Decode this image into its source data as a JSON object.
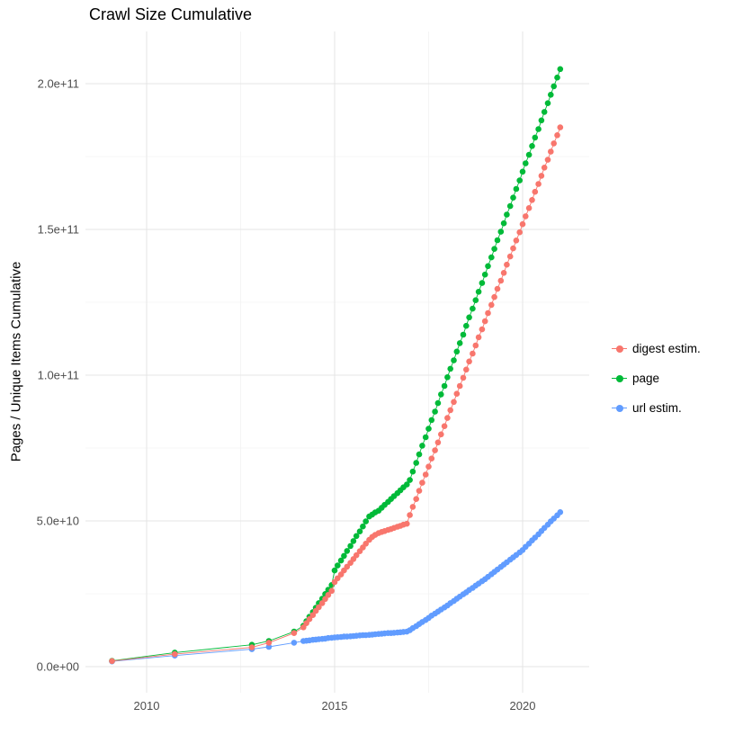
{
  "chart_data": {
    "type": "scatter",
    "title": "Crawl Size Cumulative",
    "xlabel": "",
    "ylabel": "Pages / Unique Items Cumulative",
    "grid": true,
    "legend_position": "right",
    "y_unit": 1000000000.0,
    "xlim": [
      2008.4,
      2021.8
    ],
    "ylim": [
      -9000000000.0,
      218000000000.0
    ],
    "x_ticks": [
      {
        "value": 2010,
        "label": "2010"
      },
      {
        "value": 2015,
        "label": "2015"
      },
      {
        "value": 2020,
        "label": "2020"
      }
    ],
    "y_ticks": [
      {
        "value": 0,
        "label": "0.0e+00"
      },
      {
        "value": 50,
        "label": "5.0e+10"
      },
      {
        "value": 100,
        "label": "1.0e+11"
      },
      {
        "value": 150,
        "label": "1.5e+11"
      },
      {
        "value": 200,
        "label": "2.0e+11"
      }
    ],
    "series": [
      {
        "name": "digest estim.",
        "color": "#F8766D",
        "points": [
          [
            2009.08,
            1.9
          ],
          [
            2010.75,
            4.3
          ],
          [
            2012.8,
            6.6
          ],
          [
            2013.25,
            8.2
          ],
          [
            2013.92,
            11.5
          ],
          [
            2014.17,
            13.5
          ],
          [
            2014.25,
            14.9
          ],
          [
            2014.33,
            16.3
          ],
          [
            2014.42,
            17.7
          ],
          [
            2014.5,
            19.1
          ],
          [
            2014.58,
            20.4
          ],
          [
            2014.67,
            21.8
          ],
          [
            2014.75,
            23.2
          ],
          [
            2014.83,
            24.6
          ],
          [
            2014.92,
            26.0
          ],
          [
            2015.0,
            29.0
          ],
          [
            2015.08,
            30.3
          ],
          [
            2015.17,
            31.6
          ],
          [
            2015.25,
            33.0
          ],
          [
            2015.33,
            34.3
          ],
          [
            2015.42,
            35.6
          ],
          [
            2015.5,
            36.9
          ],
          [
            2015.58,
            38.2
          ],
          [
            2015.67,
            39.6
          ],
          [
            2015.75,
            40.9
          ],
          [
            2015.83,
            42.2
          ],
          [
            2015.92,
            43.5
          ],
          [
            2016.0,
            44.5
          ],
          [
            2016.08,
            45.2
          ],
          [
            2016.17,
            45.8
          ],
          [
            2016.25,
            46.2
          ],
          [
            2016.33,
            46.5
          ],
          [
            2016.42,
            46.9
          ],
          [
            2016.5,
            47.2
          ],
          [
            2016.58,
            47.6
          ],
          [
            2016.67,
            48.0
          ],
          [
            2016.75,
            48.3
          ],
          [
            2016.83,
            48.7
          ],
          [
            2016.92,
            49.0
          ],
          [
            2017.0,
            52.0
          ],
          [
            2017.08,
            54.8
          ],
          [
            2017.17,
            57.5
          ],
          [
            2017.25,
            60.3
          ],
          [
            2017.33,
            63.1
          ],
          [
            2017.42,
            65.9
          ],
          [
            2017.5,
            68.6
          ],
          [
            2017.58,
            71.4
          ],
          [
            2017.67,
            74.2
          ],
          [
            2017.75,
            76.9
          ],
          [
            2017.83,
            79.7
          ],
          [
            2017.92,
            82.5
          ],
          [
            2018.0,
            85.3
          ],
          [
            2018.08,
            88.0
          ],
          [
            2018.17,
            90.8
          ],
          [
            2018.25,
            93.6
          ],
          [
            2018.33,
            96.3
          ],
          [
            2018.42,
            99.1
          ],
          [
            2018.5,
            101.9
          ],
          [
            2018.58,
            104.7
          ],
          [
            2018.67,
            107.4
          ],
          [
            2018.75,
            110.2
          ],
          [
            2018.83,
            113.0
          ],
          [
            2018.92,
            115.7
          ],
          [
            2019.0,
            118.5
          ],
          [
            2019.08,
            121.3
          ],
          [
            2019.17,
            124.1
          ],
          [
            2019.25,
            126.8
          ],
          [
            2019.33,
            129.6
          ],
          [
            2019.42,
            132.4
          ],
          [
            2019.5,
            135.1
          ],
          [
            2019.58,
            137.9
          ],
          [
            2019.67,
            140.7
          ],
          [
            2019.75,
            143.5
          ],
          [
            2019.83,
            146.2
          ],
          [
            2019.92,
            149.0
          ],
          [
            2020.0,
            151.8
          ],
          [
            2020.08,
            154.5
          ],
          [
            2020.17,
            157.3
          ],
          [
            2020.25,
            160.1
          ],
          [
            2020.33,
            162.9
          ],
          [
            2020.42,
            165.6
          ],
          [
            2020.5,
            168.4
          ],
          [
            2020.58,
            171.2
          ],
          [
            2020.67,
            173.9
          ],
          [
            2020.75,
            176.7
          ],
          [
            2020.83,
            179.5
          ],
          [
            2020.92,
            182.3
          ],
          [
            2021.0,
            185.0
          ]
        ]
      },
      {
        "name": "page",
        "color": "#00BA38",
        "points": [
          [
            2009.08,
            2.0
          ],
          [
            2010.75,
            4.8
          ],
          [
            2012.8,
            7.5
          ],
          [
            2013.25,
            8.8
          ],
          [
            2013.92,
            12.0
          ],
          [
            2014.17,
            14.0
          ],
          [
            2014.25,
            15.6
          ],
          [
            2014.33,
            17.1
          ],
          [
            2014.42,
            18.7
          ],
          [
            2014.5,
            20.2
          ],
          [
            2014.58,
            21.8
          ],
          [
            2014.67,
            23.3
          ],
          [
            2014.75,
            24.9
          ],
          [
            2014.83,
            26.4
          ],
          [
            2014.92,
            28.0
          ],
          [
            2015.0,
            33.0
          ],
          [
            2015.08,
            34.7
          ],
          [
            2015.17,
            36.4
          ],
          [
            2015.25,
            38.0
          ],
          [
            2015.33,
            39.7
          ],
          [
            2015.42,
            41.4
          ],
          [
            2015.5,
            43.1
          ],
          [
            2015.58,
            44.8
          ],
          [
            2015.67,
            46.4
          ],
          [
            2015.75,
            48.1
          ],
          [
            2015.83,
            49.8
          ],
          [
            2015.92,
            51.5
          ],
          [
            2016.0,
            52.2
          ],
          [
            2016.08,
            52.9
          ],
          [
            2016.17,
            53.5
          ],
          [
            2016.25,
            54.5
          ],
          [
            2016.33,
            55.5
          ],
          [
            2016.42,
            56.5
          ],
          [
            2016.5,
            57.5
          ],
          [
            2016.58,
            58.5
          ],
          [
            2016.67,
            59.5
          ],
          [
            2016.75,
            60.5
          ],
          [
            2016.83,
            61.5
          ],
          [
            2016.92,
            62.5
          ],
          [
            2017.0,
            64.0
          ],
          [
            2017.08,
            66.9
          ],
          [
            2017.17,
            69.9
          ],
          [
            2017.25,
            72.8
          ],
          [
            2017.33,
            75.8
          ],
          [
            2017.42,
            78.7
          ],
          [
            2017.5,
            81.6
          ],
          [
            2017.58,
            84.6
          ],
          [
            2017.67,
            87.5
          ],
          [
            2017.75,
            90.4
          ],
          [
            2017.83,
            93.4
          ],
          [
            2017.92,
            96.3
          ],
          [
            2018.0,
            99.3
          ],
          [
            2018.08,
            102.2
          ],
          [
            2018.17,
            105.1
          ],
          [
            2018.25,
            108.1
          ],
          [
            2018.33,
            111.0
          ],
          [
            2018.42,
            113.9
          ],
          [
            2018.5,
            116.9
          ],
          [
            2018.58,
            119.8
          ],
          [
            2018.67,
            122.8
          ],
          [
            2018.75,
            125.7
          ],
          [
            2018.83,
            128.6
          ],
          [
            2018.92,
            131.6
          ],
          [
            2019.0,
            134.5
          ],
          [
            2019.08,
            137.4
          ],
          [
            2019.17,
            140.4
          ],
          [
            2019.25,
            143.3
          ],
          [
            2019.33,
            146.3
          ],
          [
            2019.42,
            149.2
          ],
          [
            2019.5,
            152.1
          ],
          [
            2019.58,
            155.1
          ],
          [
            2019.67,
            158.0
          ],
          [
            2019.75,
            160.9
          ],
          [
            2019.83,
            163.9
          ],
          [
            2019.92,
            166.8
          ],
          [
            2020.0,
            169.8
          ],
          [
            2020.08,
            172.7
          ],
          [
            2020.17,
            175.6
          ],
          [
            2020.25,
            178.6
          ],
          [
            2020.33,
            181.5
          ],
          [
            2020.42,
            184.4
          ],
          [
            2020.5,
            187.4
          ],
          [
            2020.58,
            190.3
          ],
          [
            2020.67,
            193.3
          ],
          [
            2020.75,
            196.2
          ],
          [
            2020.83,
            199.1
          ],
          [
            2020.92,
            202.1
          ],
          [
            2021.0,
            205.0
          ]
        ]
      },
      {
        "name": "url estim.",
        "color": "#619CFF",
        "points": [
          [
            2009.08,
            1.8
          ],
          [
            2010.75,
            3.8
          ],
          [
            2012.8,
            6.0
          ],
          [
            2013.25,
            6.8
          ],
          [
            2013.92,
            8.2
          ],
          [
            2014.17,
            8.8
          ],
          [
            2014.25,
            8.9
          ],
          [
            2014.33,
            9.0
          ],
          [
            2014.42,
            9.2
          ],
          [
            2014.5,
            9.3
          ],
          [
            2014.58,
            9.4
          ],
          [
            2014.67,
            9.5
          ],
          [
            2014.75,
            9.6
          ],
          [
            2014.83,
            9.8
          ],
          [
            2014.92,
            9.9
          ],
          [
            2015.0,
            10.0
          ],
          [
            2015.08,
            10.1
          ],
          [
            2015.17,
            10.2
          ],
          [
            2015.25,
            10.3
          ],
          [
            2015.33,
            10.3
          ],
          [
            2015.42,
            10.4
          ],
          [
            2015.5,
            10.5
          ],
          [
            2015.58,
            10.6
          ],
          [
            2015.67,
            10.7
          ],
          [
            2015.75,
            10.8
          ],
          [
            2015.83,
            10.8
          ],
          [
            2015.92,
            10.9
          ],
          [
            2016.0,
            11.0
          ],
          [
            2016.08,
            11.1
          ],
          [
            2016.17,
            11.2
          ],
          [
            2016.25,
            11.3
          ],
          [
            2016.33,
            11.4
          ],
          [
            2016.42,
            11.5
          ],
          [
            2016.5,
            11.5
          ],
          [
            2016.58,
            11.6
          ],
          [
            2016.67,
            11.7
          ],
          [
            2016.75,
            11.8
          ],
          [
            2016.83,
            11.9
          ],
          [
            2016.92,
            12.0
          ],
          [
            2017.0,
            12.5
          ],
          [
            2017.08,
            13.2
          ],
          [
            2017.17,
            13.9
          ],
          [
            2017.25,
            14.6
          ],
          [
            2017.33,
            15.3
          ],
          [
            2017.42,
            16.0
          ],
          [
            2017.5,
            16.7
          ],
          [
            2017.58,
            17.5
          ],
          [
            2017.67,
            18.2
          ],
          [
            2017.75,
            18.9
          ],
          [
            2017.83,
            19.6
          ],
          [
            2017.92,
            20.3
          ],
          [
            2018.0,
            21.0
          ],
          [
            2018.08,
            21.8
          ],
          [
            2018.17,
            22.5
          ],
          [
            2018.25,
            23.3
          ],
          [
            2018.33,
            24.0
          ],
          [
            2018.42,
            24.8
          ],
          [
            2018.5,
            25.5
          ],
          [
            2018.58,
            26.3
          ],
          [
            2018.67,
            27.0
          ],
          [
            2018.75,
            27.8
          ],
          [
            2018.83,
            28.5
          ],
          [
            2018.92,
            29.3
          ],
          [
            2019.0,
            30.0
          ],
          [
            2019.08,
            30.8
          ],
          [
            2019.17,
            31.7
          ],
          [
            2019.25,
            32.5
          ],
          [
            2019.33,
            33.3
          ],
          [
            2019.42,
            34.2
          ],
          [
            2019.5,
            35.0
          ],
          [
            2019.58,
            35.8
          ],
          [
            2019.67,
            36.7
          ],
          [
            2019.75,
            37.5
          ],
          [
            2019.83,
            38.3
          ],
          [
            2019.92,
            39.2
          ],
          [
            2020.0,
            40.0
          ],
          [
            2020.08,
            41.1
          ],
          [
            2020.17,
            42.2
          ],
          [
            2020.25,
            43.3
          ],
          [
            2020.33,
            44.3
          ],
          [
            2020.42,
            45.4
          ],
          [
            2020.5,
            46.5
          ],
          [
            2020.58,
            47.6
          ],
          [
            2020.67,
            48.7
          ],
          [
            2020.75,
            49.8
          ],
          [
            2020.83,
            50.8
          ],
          [
            2020.92,
            51.9
          ],
          [
            2021.0,
            53.0
          ]
        ]
      }
    ]
  }
}
